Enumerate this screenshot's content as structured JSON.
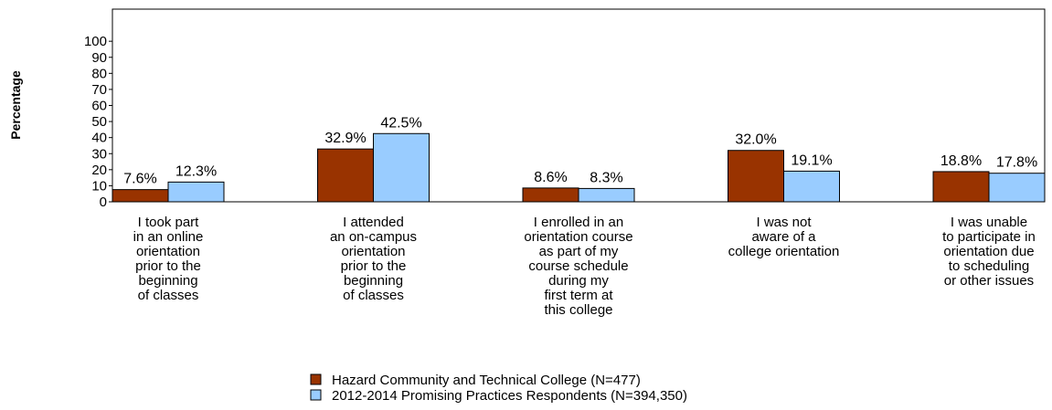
{
  "chart_data": {
    "type": "bar",
    "y_label": "Percentage",
    "categories": [
      "I took part\nin an online\norientation\nprior to the\nbeginning\nof classes",
      "I attended\nan on-campus\norientation\nprior to the\nbeginning\nof classes",
      "I enrolled in an\norientation course\nas part of my\ncourse schedule\nduring my\nfirst term at\nthis college",
      "I was not\naware of a\ncollege orientation",
      "I was unable\nto participate in\norientation due\nto scheduling\nor other issues"
    ],
    "series": [
      {
        "name": "Hazard Community and Technical College (N=477)",
        "color": "#993300",
        "values": [
          7.6,
          32.9,
          8.6,
          32.0,
          18.8
        ],
        "value_labels": [
          "7.6%",
          "32.9%",
          "8.6%",
          "32.0%",
          "18.8%"
        ]
      },
      {
        "name": "2012-2014 Promising Practices Respondents (N=394,350)",
        "color": "#99ccff",
        "values": [
          12.3,
          42.5,
          8.3,
          19.1,
          17.8
        ],
        "value_labels": [
          "12.3%",
          "42.5%",
          "8.3%",
          "19.1%",
          "17.8%"
        ]
      }
    ],
    "ylim": [
      0,
      120
    ],
    "yticks": [
      0,
      10,
      20,
      30,
      40,
      50,
      60,
      70,
      80,
      90,
      100
    ]
  }
}
